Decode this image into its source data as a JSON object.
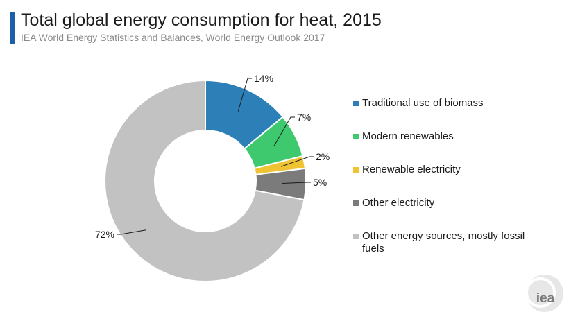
{
  "header": {
    "title": "Total global energy consumption for heat, 2015",
    "subtitle": "IEA World Energy Statistics and Balances, World Energy Outlook 2017"
  },
  "chart_data": {
    "type": "pie",
    "variant": "donut",
    "title": "Total global energy consumption for heat, 2015",
    "categories": [
      "Traditional use of biomass",
      "Modern renewables",
      "Renewable electricity",
      "Other electricity",
      "Other energy sources, mostly fossil fuels"
    ],
    "values": [
      14,
      7,
      2,
      5,
      72
    ],
    "labels": [
      "14%",
      "7%",
      "2%",
      "5%",
      "72%"
    ],
    "colors": [
      "#2d7fb8",
      "#3ec96e",
      "#f0c332",
      "#7b7b7b",
      "#c2c2c2"
    ],
    "legend_position": "right"
  },
  "logo": {
    "text": "iea"
  }
}
